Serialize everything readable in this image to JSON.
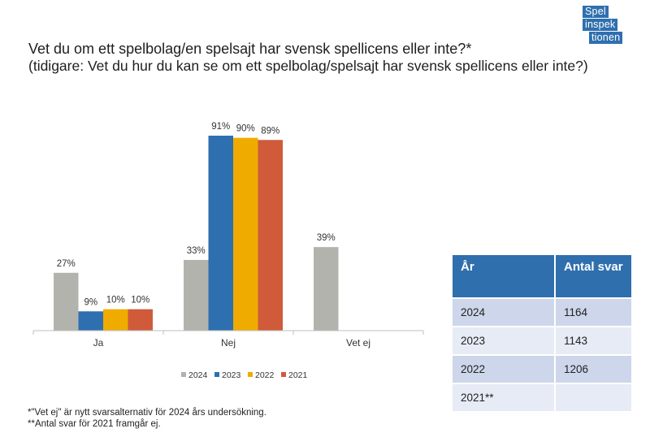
{
  "logo": {
    "line1": "Spel",
    "line2": "inspek",
    "line3": "tionen"
  },
  "title": {
    "main": "Vet du om ett spelbolag/en spelsajt har svensk spellicens eller inte?*",
    "sub": "(tidigare: Vet du hur du kan se om ett spelbolag/spelsajt har svensk spellicens eller inte?)"
  },
  "chart_data": {
    "type": "bar",
    "categories": [
      "Ja",
      "Nej",
      "Vet ej"
    ],
    "series": [
      {
        "name": "2024",
        "values": [
          27,
          33,
          39
        ],
        "labels": [
          "27%",
          "33%",
          "39%"
        ],
        "color": "#b3b3ad"
      },
      {
        "name": "2023",
        "values": [
          9,
          91,
          null
        ],
        "labels": [
          "9%",
          "91%",
          ""
        ],
        "color": "#2e6fb0"
      },
      {
        "name": "2022",
        "values": [
          10,
          90,
          null
        ],
        "labels": [
          "10%",
          "90%",
          ""
        ],
        "color": "#f0ab00"
      },
      {
        "name": "2021",
        "values": [
          10,
          89,
          null
        ],
        "labels": [
          "10%",
          "89%",
          ""
        ],
        "color": "#cf5b3a"
      }
    ],
    "ylim": [
      0,
      91
    ],
    "grid": false,
    "legend": "bottom"
  },
  "table": {
    "headers": [
      "År",
      "Antal svar"
    ],
    "rows": [
      [
        "2024",
        "1164"
      ],
      [
        "2023",
        "1143"
      ],
      [
        "2022",
        "1206"
      ],
      [
        "2021**",
        ""
      ]
    ]
  },
  "footnotes": {
    "note1": "*\"Vet ej\" är nytt svarsalternativ för 2024 års undersökning.",
    "note2": "**Antal svar för 2021 framgår ej."
  }
}
